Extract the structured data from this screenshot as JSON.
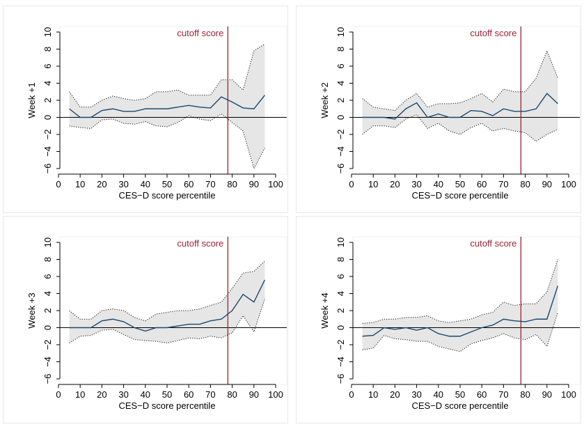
{
  "chart_data": [
    {
      "type": "line",
      "ylabel": "Week +1",
      "xlabel": "CES−D score percentile",
      "annotation": "cutoff score",
      "cutoff_x": 78,
      "xlim": [
        0,
        100
      ],
      "ylim": [
        -6,
        10
      ],
      "x_ticks": [
        0,
        10,
        20,
        30,
        40,
        50,
        60,
        70,
        80,
        90,
        100
      ],
      "x_tick_labels": [
        "0",
        "10",
        "20",
        "30",
        "40",
        "50",
        "60",
        "70",
        "80",
        "90",
        "100"
      ],
      "y_ticks": [
        -6,
        -4,
        -2,
        0,
        2,
        4,
        6,
        8,
        10
      ],
      "y_tick_labels": [
        "−6",
        "−4",
        "−2",
        "0",
        "2",
        "4",
        "6",
        "8",
        "10"
      ],
      "x": [
        5,
        10,
        15,
        20,
        25,
        30,
        35,
        40,
        45,
        50,
        55,
        60,
        65,
        70,
        75,
        80,
        85,
        90,
        95
      ],
      "estimate": [
        1.0,
        0.0,
        0.0,
        0.8,
        1.0,
        0.7,
        0.7,
        1.0,
        1.0,
        1.0,
        1.2,
        1.4,
        1.2,
        1.1,
        2.4,
        1.8,
        1.1,
        1.0,
        2.6
      ],
      "ci_upper": [
        3.0,
        1.2,
        1.2,
        2.0,
        2.5,
        2.2,
        2.0,
        2.2,
        3.0,
        3.0,
        3.2,
        2.6,
        2.6,
        2.6,
        4.4,
        4.4,
        3.2,
        7.8,
        8.6
      ],
      "ci_lower": [
        -1.0,
        -1.2,
        -1.3,
        -0.3,
        -0.2,
        -0.7,
        -0.8,
        -0.5,
        -1.0,
        -1.1,
        -0.6,
        0.2,
        -0.2,
        -0.4,
        0.4,
        -0.6,
        -1.6,
        -6.0,
        -3.6
      ]
    },
    {
      "type": "line",
      "ylabel": "Week +2",
      "xlabel": "CES−D score percentile",
      "annotation": "cutoff score",
      "cutoff_x": 78,
      "xlim": [
        0,
        100
      ],
      "ylim": [
        -6,
        10
      ],
      "x_ticks": [
        0,
        10,
        20,
        30,
        40,
        50,
        60,
        70,
        80,
        90,
        100
      ],
      "x_tick_labels": [
        "0",
        "10",
        "20",
        "30",
        "40",
        "50",
        "60",
        "70",
        "80",
        "90",
        "100"
      ],
      "y_ticks": [
        -6,
        -4,
        -2,
        0,
        2,
        4,
        6,
        8,
        10
      ],
      "y_tick_labels": [
        "−6",
        "−4",
        "−2",
        "0",
        "2",
        "4",
        "6",
        "8",
        "10"
      ],
      "x": [
        5,
        10,
        15,
        20,
        25,
        30,
        35,
        40,
        45,
        50,
        55,
        60,
        65,
        70,
        75,
        80,
        85,
        90,
        95
      ],
      "estimate": [
        0.0,
        0.0,
        0.0,
        -0.2,
        1.0,
        1.7,
        0.0,
        0.4,
        0.0,
        0.0,
        0.8,
        0.7,
        0.2,
        1.0,
        0.7,
        0.7,
        1.0,
        2.8,
        1.6
      ],
      "ci_upper": [
        2.2,
        1.2,
        1.0,
        0.8,
        2.0,
        2.8,
        1.2,
        1.6,
        1.6,
        1.7,
        2.2,
        2.8,
        1.8,
        3.3,
        3.0,
        3.0,
        4.6,
        7.8,
        4.6
      ],
      "ci_lower": [
        -2.0,
        -1.0,
        -1.0,
        -1.2,
        -0.2,
        0.3,
        -1.3,
        -0.7,
        -1.6,
        -2.0,
        -1.2,
        -0.7,
        -1.6,
        -1.3,
        -1.6,
        -1.8,
        -2.8,
        -2.0,
        -1.4
      ]
    },
    {
      "type": "line",
      "ylabel": "Week +3",
      "xlabel": "CES−D score percentile",
      "annotation": "cutoff score",
      "cutoff_x": 78,
      "xlim": [
        0,
        100
      ],
      "ylim": [
        -6,
        10
      ],
      "x_ticks": [
        0,
        10,
        20,
        30,
        40,
        50,
        60,
        70,
        80,
        90,
        100
      ],
      "x_tick_labels": [
        "0",
        "10",
        "20",
        "30",
        "40",
        "50",
        "60",
        "70",
        "80",
        "90",
        "100"
      ],
      "y_ticks": [
        -6,
        -4,
        -2,
        0,
        2,
        4,
        6,
        8,
        10
      ],
      "y_tick_labels": [
        "−6",
        "−4",
        "−2",
        "0",
        "2",
        "4",
        "6",
        "8",
        "10"
      ],
      "x": [
        5,
        10,
        15,
        20,
        25,
        30,
        35,
        40,
        45,
        50,
        55,
        60,
        65,
        70,
        75,
        80,
        85,
        90,
        95
      ],
      "estimate": [
        0.0,
        0.0,
        0.0,
        0.8,
        1.0,
        0.7,
        0.0,
        -0.4,
        0.0,
        0.0,
        0.2,
        0.4,
        0.4,
        0.8,
        1.0,
        2.0,
        3.9,
        3.0,
        5.6
      ],
      "ci_upper": [
        2.0,
        1.0,
        1.0,
        2.0,
        2.2,
        2.0,
        1.2,
        0.8,
        1.6,
        1.8,
        2.0,
        2.0,
        2.2,
        2.6,
        3.0,
        4.6,
        6.4,
        6.6,
        7.8
      ],
      "ci_lower": [
        -1.8,
        -1.0,
        -0.9,
        -0.3,
        -0.2,
        -0.8,
        -1.4,
        -1.5,
        -1.6,
        -1.8,
        -1.5,
        -1.2,
        -1.3,
        -1.0,
        -1.2,
        -0.6,
        1.4,
        -0.5,
        3.4
      ]
    },
    {
      "type": "line",
      "ylabel": "Week +4",
      "xlabel": "CES−D score percentile",
      "annotation": "cutoff score",
      "cutoff_x": 78,
      "xlim": [
        0,
        100
      ],
      "ylim": [
        -6,
        10
      ],
      "x_ticks": [
        0,
        10,
        20,
        30,
        40,
        50,
        60,
        70,
        80,
        90,
        100
      ],
      "x_tick_labels": [
        "0",
        "10",
        "20",
        "30",
        "40",
        "50",
        "60",
        "70",
        "80",
        "90",
        "100"
      ],
      "y_ticks": [
        -6,
        -4,
        -2,
        0,
        2,
        4,
        6,
        8,
        10
      ],
      "y_tick_labels": [
        "−6",
        "−4",
        "−2",
        "0",
        "2",
        "4",
        "6",
        "8",
        "10"
      ],
      "x": [
        5,
        10,
        15,
        20,
        25,
        30,
        35,
        40,
        45,
        50,
        55,
        60,
        65,
        70,
        75,
        80,
        85,
        90,
        95
      ],
      "estimate": [
        -1.0,
        -0.9,
        0.0,
        -0.2,
        0.0,
        -0.3,
        0.0,
        -0.7,
        -1.0,
        -1.0,
        -0.5,
        0.0,
        0.3,
        1.0,
        0.8,
        0.7,
        1.0,
        1.0,
        4.9
      ],
      "ci_upper": [
        0.5,
        0.6,
        1.0,
        1.0,
        1.2,
        1.2,
        1.4,
        0.8,
        0.6,
        0.8,
        1.0,
        1.5,
        1.8,
        3.0,
        2.6,
        2.8,
        2.8,
        4.2,
        8.0
      ],
      "ci_lower": [
        -2.6,
        -2.4,
        -0.9,
        -1.3,
        -1.4,
        -1.6,
        -1.6,
        -2.2,
        -2.5,
        -2.8,
        -1.9,
        -1.5,
        -1.2,
        -0.7,
        -1.2,
        -1.4,
        -0.8,
        -2.2,
        1.8
      ]
    }
  ]
}
